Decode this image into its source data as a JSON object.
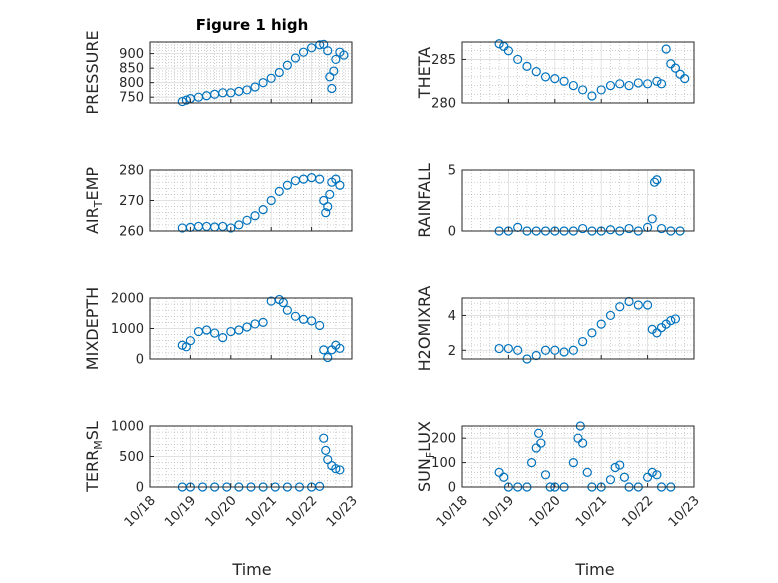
{
  "figure_title": "Figure 1 high",
  "colors": {
    "marker": "#0072BD",
    "axes": "#262626",
    "grid_major": "#dcdcdc",
    "grid_minor": "#b0b0b0"
  },
  "chart_data": [
    {
      "type": "scatter",
      "title": "Figure 1 high",
      "ylabel": "PRESSURE",
      "xlim": [
        18.7,
        22.9
      ],
      "ylim": [
        730,
        940
      ],
      "yticks": [
        750,
        800,
        850,
        900
      ],
      "points": [
        [
          18.8,
          735
        ],
        [
          18.9,
          740
        ],
        [
          19.0,
          745
        ],
        [
          19.2,
          750
        ],
        [
          19.4,
          755
        ],
        [
          19.6,
          760
        ],
        [
          19.8,
          765
        ],
        [
          20.0,
          765
        ],
        [
          20.2,
          770
        ],
        [
          20.4,
          775
        ],
        [
          20.6,
          785
        ],
        [
          20.8,
          800
        ],
        [
          21.0,
          815
        ],
        [
          21.2,
          835
        ],
        [
          21.4,
          860
        ],
        [
          21.6,
          885
        ],
        [
          21.8,
          905
        ],
        [
          22.0,
          920
        ],
        [
          22.2,
          930
        ],
        [
          22.3,
          932
        ],
        [
          22.4,
          910
        ],
        [
          22.45,
          820
        ],
        [
          22.5,
          780
        ],
        [
          22.55,
          840
        ],
        [
          22.6,
          880
        ],
        [
          22.7,
          905
        ],
        [
          22.8,
          895
        ]
      ]
    },
    {
      "type": "scatter",
      "ylabel": "THETA",
      "xlim": [
        18.7,
        22.9
      ],
      "ylim": [
        280,
        287
      ],
      "yticks": [
        280,
        285
      ],
      "points": [
        [
          18.8,
          286.8
        ],
        [
          18.9,
          286.5
        ],
        [
          19.0,
          286
        ],
        [
          19.2,
          285
        ],
        [
          19.4,
          284.2
        ],
        [
          19.6,
          283.6
        ],
        [
          19.8,
          283
        ],
        [
          20.0,
          282.8
        ],
        [
          20.2,
          282.5
        ],
        [
          20.4,
          282
        ],
        [
          20.6,
          281.5
        ],
        [
          20.8,
          280.8
        ],
        [
          21.0,
          281.5
        ],
        [
          21.2,
          282
        ],
        [
          21.4,
          282.2
        ],
        [
          21.6,
          282
        ],
        [
          21.8,
          282.3
        ],
        [
          22.0,
          282.2
        ],
        [
          22.2,
          282.5
        ],
        [
          22.3,
          282.2
        ],
        [
          22.4,
          286.2
        ],
        [
          22.5,
          284.5
        ],
        [
          22.6,
          284
        ],
        [
          22.7,
          283.3
        ],
        [
          22.8,
          282.8
        ]
      ]
    },
    {
      "type": "scatter",
      "ylabel": "AIR_TEMP",
      "xlim": [
        18.7,
        22.9
      ],
      "ylim": [
        260,
        280
      ],
      "yticks": [
        260,
        270,
        280
      ],
      "points": [
        [
          18.8,
          261
        ],
        [
          19.0,
          261.2
        ],
        [
          19.2,
          261.5
        ],
        [
          19.4,
          261.5
        ],
        [
          19.6,
          261.3
        ],
        [
          19.8,
          261.5
        ],
        [
          20.0,
          261
        ],
        [
          20.2,
          262
        ],
        [
          20.4,
          263.5
        ],
        [
          20.6,
          265
        ],
        [
          20.8,
          267
        ],
        [
          21.0,
          270
        ],
        [
          21.2,
          273
        ],
        [
          21.4,
          275
        ],
        [
          21.6,
          276.5
        ],
        [
          21.8,
          277
        ],
        [
          22.0,
          277.5
        ],
        [
          22.2,
          277
        ],
        [
          22.3,
          270
        ],
        [
          22.35,
          266
        ],
        [
          22.4,
          268
        ],
        [
          22.45,
          272
        ],
        [
          22.5,
          276
        ],
        [
          22.6,
          277
        ],
        [
          22.7,
          275
        ]
      ]
    },
    {
      "type": "scatter",
      "ylabel": "RAINFALL",
      "xlim": [
        18.7,
        22.9
      ],
      "ylim": [
        0,
        5
      ],
      "yticks": [
        0,
        5
      ],
      "points": [
        [
          18.8,
          0
        ],
        [
          19.0,
          0
        ],
        [
          19.2,
          0.3
        ],
        [
          19.4,
          0
        ],
        [
          19.6,
          0
        ],
        [
          19.8,
          0
        ],
        [
          20.0,
          0
        ],
        [
          20.2,
          0
        ],
        [
          20.4,
          0
        ],
        [
          20.6,
          0.2
        ],
        [
          20.8,
          0
        ],
        [
          21.0,
          0
        ],
        [
          21.2,
          0.1
        ],
        [
          21.4,
          0
        ],
        [
          21.6,
          0.2
        ],
        [
          21.8,
          0
        ],
        [
          22.0,
          0.3
        ],
        [
          22.1,
          1
        ],
        [
          22.15,
          4
        ],
        [
          22.2,
          4.2
        ],
        [
          22.3,
          0.2
        ],
        [
          22.5,
          0
        ],
        [
          22.7,
          0
        ]
      ]
    },
    {
      "type": "scatter",
      "ylabel": "MIXDEPTH",
      "xlim": [
        18.7,
        22.9
      ],
      "ylim": [
        0,
        2000
      ],
      "yticks": [
        0,
        1000,
        2000
      ],
      "points": [
        [
          18.8,
          450
        ],
        [
          18.9,
          400
        ],
        [
          19.0,
          600
        ],
        [
          19.2,
          900
        ],
        [
          19.4,
          950
        ],
        [
          19.6,
          850
        ],
        [
          19.8,
          700
        ],
        [
          20.0,
          900
        ],
        [
          20.2,
          950
        ],
        [
          20.4,
          1050
        ],
        [
          20.6,
          1150
        ],
        [
          20.8,
          1200
        ],
        [
          21.0,
          1900
        ],
        [
          21.2,
          1950
        ],
        [
          21.3,
          1850
        ],
        [
          21.4,
          1600
        ],
        [
          21.6,
          1400
        ],
        [
          21.8,
          1300
        ],
        [
          22.0,
          1250
        ],
        [
          22.2,
          1100
        ],
        [
          22.3,
          300
        ],
        [
          22.4,
          50
        ],
        [
          22.5,
          300
        ],
        [
          22.6,
          450
        ],
        [
          22.7,
          350
        ]
      ]
    },
    {
      "type": "scatter",
      "ylabel": "H2OMIXRA",
      "xlim": [
        18.7,
        22.9
      ],
      "ylim": [
        1.5,
        5
      ],
      "yticks": [
        2,
        4
      ],
      "points": [
        [
          18.8,
          2.1
        ],
        [
          19.0,
          2.1
        ],
        [
          19.2,
          2.0
        ],
        [
          19.4,
          1.5
        ],
        [
          19.6,
          1.7
        ],
        [
          19.8,
          2.0
        ],
        [
          20.0,
          2.0
        ],
        [
          20.2,
          1.9
        ],
        [
          20.4,
          2.0
        ],
        [
          20.6,
          2.5
        ],
        [
          20.8,
          3.0
        ],
        [
          21.0,
          3.5
        ],
        [
          21.2,
          4.0
        ],
        [
          21.4,
          4.5
        ],
        [
          21.6,
          4.8
        ],
        [
          21.8,
          4.6
        ],
        [
          22.0,
          4.6
        ],
        [
          22.1,
          3.2
        ],
        [
          22.2,
          3.0
        ],
        [
          22.3,
          3.3
        ],
        [
          22.4,
          3.5
        ],
        [
          22.5,
          3.7
        ],
        [
          22.6,
          3.8
        ]
      ]
    },
    {
      "type": "scatter",
      "ylabel": "TERR_MSL",
      "xlim": [
        18.7,
        22.9
      ],
      "ylim": [
        0,
        1000
      ],
      "yticks": [
        0,
        500,
        1000
      ],
      "points": [
        [
          18.8,
          0
        ],
        [
          19.0,
          0
        ],
        [
          19.3,
          0
        ],
        [
          19.6,
          0
        ],
        [
          19.9,
          0
        ],
        [
          20.2,
          0
        ],
        [
          20.5,
          0
        ],
        [
          20.8,
          0
        ],
        [
          21.1,
          0
        ],
        [
          21.4,
          0
        ],
        [
          21.7,
          0
        ],
        [
          22.0,
          0
        ],
        [
          22.2,
          10
        ],
        [
          22.3,
          800
        ],
        [
          22.35,
          600
        ],
        [
          22.4,
          450
        ],
        [
          22.5,
          350
        ],
        [
          22.6,
          300
        ],
        [
          22.7,
          280
        ]
      ]
    },
    {
      "type": "scatter",
      "ylabel": "SUN_FLUX",
      "xlim": [
        18.7,
        22.9
      ],
      "ylim": [
        0,
        250
      ],
      "yticks": [
        0,
        100,
        200
      ],
      "xticks": [
        "10/18",
        "10/19",
        "10/20",
        "10/21",
        "10/22",
        "10/23"
      ],
      "points": [
        [
          18.8,
          60
        ],
        [
          18.9,
          40
        ],
        [
          19.0,
          0
        ],
        [
          19.2,
          0
        ],
        [
          19.4,
          0
        ],
        [
          19.5,
          100
        ],
        [
          19.6,
          160
        ],
        [
          19.65,
          220
        ],
        [
          19.7,
          180
        ],
        [
          19.8,
          50
        ],
        [
          19.9,
          0
        ],
        [
          20.0,
          0
        ],
        [
          20.2,
          0
        ],
        [
          20.4,
          100
        ],
        [
          20.5,
          200
        ],
        [
          20.55,
          250
        ],
        [
          20.6,
          180
        ],
        [
          20.7,
          60
        ],
        [
          20.8,
          0
        ],
        [
          21.0,
          0
        ],
        [
          21.2,
          30
        ],
        [
          21.3,
          80
        ],
        [
          21.4,
          90
        ],
        [
          21.5,
          40
        ],
        [
          21.6,
          0
        ],
        [
          21.8,
          0
        ],
        [
          22.0,
          40
        ],
        [
          22.1,
          60
        ],
        [
          22.2,
          50
        ],
        [
          22.3,
          0
        ],
        [
          22.5,
          0
        ]
      ]
    }
  ],
  "x_tick_labels": [
    "10/18",
    "10/19",
    "10/20",
    "10/21",
    "10/22",
    "10/23"
  ],
  "x_label": "Time"
}
